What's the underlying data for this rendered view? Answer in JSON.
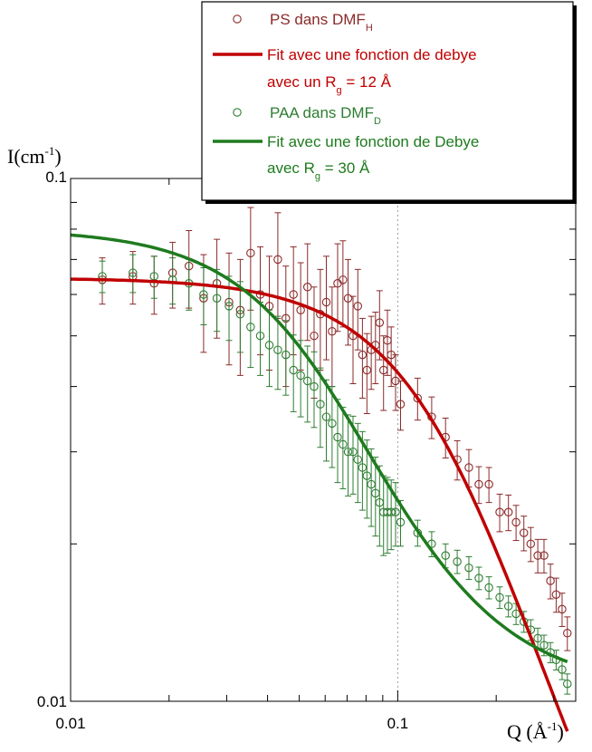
{
  "chart_data": {
    "type": "scatter",
    "x_scale": "log",
    "y_scale": "log",
    "xlim": [
      0.01,
      0.35
    ],
    "ylim": [
      0.01,
      0.1
    ],
    "x_tick_labels": [
      "0.01",
      "0.1"
    ],
    "y_tick_labels": [
      "0.01",
      "0.1"
    ],
    "xlabel": {
      "main": "Q (Å",
      "sup": "-1",
      "close": ")"
    },
    "ylabel": {
      "main": "I(cm",
      "sup": "-1",
      "close": ")"
    },
    "reference_line_x": 0.1,
    "legend_placement": "top-right",
    "legend": [
      {
        "kind": "marker",
        "color": "#8b2a2a",
        "text": "PS dans DMF",
        "sub": "H",
        "after": ""
      },
      {
        "kind": "line",
        "color": "#c00000",
        "text": "Fit avec une fonction de debye",
        "sub": "",
        "after": ""
      },
      {
        "kind": "none",
        "color": "#c00000",
        "text": "avec un  R",
        "sub": "g",
        "after": " = 12 Å"
      },
      {
        "kind": "marker",
        "color": "#2e7d32",
        "text": "PAA dans DMF",
        "sub": "D",
        "after": ""
      },
      {
        "kind": "line",
        "color": "#1e7b1e",
        "text": "Fit avec une  fonction de Debye",
        "sub": "",
        "after": ""
      },
      {
        "kind": "none",
        "color": "#1e7b1e",
        "text": "avec R",
        "sub": "g",
        "after": " = 30 Å"
      }
    ],
    "series": [
      {
        "name": "PS dans DMF_H",
        "kind": "points_with_error",
        "color": "#8b2a2a",
        "x": [
          0.0125,
          0.0155,
          0.018,
          0.0205,
          0.023,
          0.0255,
          0.028,
          0.0305,
          0.033,
          0.0355,
          0.038,
          0.0405,
          0.043,
          0.0455,
          0.048,
          0.0505,
          0.053,
          0.0555,
          0.058,
          0.0605,
          0.063,
          0.0655,
          0.068,
          0.0705,
          0.073,
          0.0755,
          0.078,
          0.0805,
          0.083,
          0.0855,
          0.088,
          0.0905,
          0.093,
          0.0955,
          0.0985,
          0.102,
          0.115,
          0.127,
          0.14,
          0.152,
          0.165,
          0.177,
          0.19,
          0.205,
          0.218,
          0.23,
          0.243,
          0.255,
          0.268,
          0.28,
          0.293,
          0.305,
          0.318,
          0.33
        ],
        "y": [
          0.064,
          0.065,
          0.063,
          0.066,
          0.068,
          0.059,
          0.063,
          0.058,
          0.056,
          0.072,
          0.06,
          0.057,
          0.07,
          0.054,
          0.06,
          0.056,
          0.062,
          0.05,
          0.055,
          0.058,
          0.051,
          0.063,
          0.064,
          0.059,
          0.05,
          0.057,
          0.046,
          0.043,
          0.047,
          0.048,
          0.053,
          0.043,
          0.049,
          0.046,
          0.041,
          0.037,
          0.038,
          0.035,
          0.032,
          0.029,
          0.028,
          0.026,
          0.026,
          0.023,
          0.023,
          0.022,
          0.021,
          0.02,
          0.019,
          0.019,
          0.017,
          0.016,
          0.015,
          0.0135
        ],
        "err": [
          0.0065,
          0.0075,
          0.008,
          0.0095,
          0.0115,
          0.0125,
          0.0135,
          0.014,
          0.014,
          0.016,
          0.014,
          0.014,
          0.016,
          0.014,
          0.014,
          0.013,
          0.013,
          0.012,
          0.012,
          0.013,
          0.011,
          0.012,
          0.012,
          0.011,
          0.0095,
          0.01,
          0.008,
          0.0075,
          0.0075,
          0.0075,
          0.008,
          0.007,
          0.007,
          0.006,
          0.005,
          0.004,
          0.0035,
          0.0032,
          0.0028,
          0.0025,
          0.0023,
          0.0021,
          0.002,
          0.0019,
          0.0018,
          0.0017,
          0.0016,
          0.0015,
          0.0014,
          0.0014,
          0.0013,
          0.0012,
          0.0011,
          0.001
        ]
      },
      {
        "name": "PAA dans DMF_D",
        "kind": "points_with_error",
        "color": "#2e7d32",
        "x": [
          0.0125,
          0.0155,
          0.018,
          0.0205,
          0.023,
          0.0255,
          0.028,
          0.0305,
          0.033,
          0.0355,
          0.038,
          0.0405,
          0.043,
          0.0455,
          0.048,
          0.0505,
          0.053,
          0.0555,
          0.058,
          0.0605,
          0.063,
          0.0655,
          0.068,
          0.0705,
          0.073,
          0.0755,
          0.078,
          0.0805,
          0.083,
          0.0855,
          0.088,
          0.0905,
          0.093,
          0.0955,
          0.0985,
          0.102,
          0.115,
          0.127,
          0.14,
          0.152,
          0.165,
          0.177,
          0.19,
          0.205,
          0.218,
          0.23,
          0.243,
          0.255,
          0.268,
          0.28,
          0.293,
          0.305,
          0.318,
          0.33
        ],
        "y": [
          0.065,
          0.066,
          0.065,
          0.064,
          0.063,
          0.06,
          0.059,
          0.057,
          0.055,
          0.052,
          0.05,
          0.048,
          0.047,
          0.046,
          0.043,
          0.042,
          0.041,
          0.04,
          0.037,
          0.035,
          0.034,
          0.032,
          0.031,
          0.03,
          0.03,
          0.029,
          0.028,
          0.027,
          0.026,
          0.025,
          0.024,
          0.023,
          0.023,
          0.023,
          0.023,
          0.022,
          0.021,
          0.02,
          0.019,
          0.0185,
          0.018,
          0.0172,
          0.0165,
          0.0158,
          0.0152,
          0.0147,
          0.0142,
          0.0137,
          0.0132,
          0.0128,
          0.0124,
          0.012,
          0.0115,
          0.0108
        ],
        "err": [
          0.0045,
          0.0055,
          0.006,
          0.0065,
          0.007,
          0.0075,
          0.008,
          0.008,
          0.0085,
          0.0085,
          0.008,
          0.008,
          0.0075,
          0.0075,
          0.0072,
          0.007,
          0.0068,
          0.0066,
          0.0064,
          0.0062,
          0.006,
          0.0058,
          0.0055,
          0.0053,
          0.0051,
          0.005,
          0.0048,
          0.0046,
          0.0044,
          0.0043,
          0.0042,
          0.004,
          0.0038,
          0.0035,
          0.0032,
          0.0022,
          0.0012,
          0.0011,
          0.001,
          0.00095,
          0.0009,
          0.00085,
          0.0008,
          0.00075,
          0.0007,
          0.00068,
          0.00065,
          0.00062,
          0.0006,
          0.00058,
          0.00055,
          0.00052,
          0.0005,
          0.00048
        ]
      },
      {
        "name": "Fit avec une fonction de debye (Rg = 12 Å)",
        "kind": "line",
        "color": "#c00000",
        "Rg": 12,
        "I0": 0.0633,
        "bg": 0.0012
      },
      {
        "name": "Fit avec une fonction de Debye (Rg = 30 Å)",
        "kind": "line",
        "color": "#1e7b1e",
        "Rg": 30,
        "I0": 0.0695,
        "bg": 0.0105
      }
    ]
  }
}
